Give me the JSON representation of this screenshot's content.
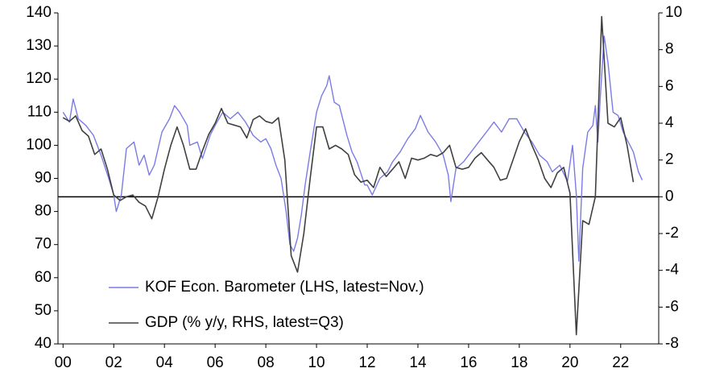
{
  "chart_data": {
    "type": "line",
    "xlim": [
      1999.8,
      2023.5
    ],
    "xticks": [
      {
        "value": 2000,
        "label": "00"
      },
      {
        "value": 2002,
        "label": "02"
      },
      {
        "value": 2004,
        "label": "04"
      },
      {
        "value": 2006,
        "label": "06"
      },
      {
        "value": 2008,
        "label": "08"
      },
      {
        "value": 2010,
        "label": "10"
      },
      {
        "value": 2012,
        "label": "12"
      },
      {
        "value": 2014,
        "label": "14"
      },
      {
        "value": 2016,
        "label": "16"
      },
      {
        "value": 2018,
        "label": "18"
      },
      {
        "value": 2020,
        "label": "20"
      },
      {
        "value": 2022,
        "label": "22"
      }
    ],
    "ylim": [
      40,
      140
    ],
    "yticks": [
      40,
      50,
      60,
      70,
      80,
      90,
      100,
      110,
      120,
      130,
      140
    ],
    "y2lim": [
      -8,
      10
    ],
    "y2ticks": [
      -8,
      -6,
      -4,
      -2,
      0,
      2,
      4,
      6,
      8,
      10
    ],
    "legend": "lower left",
    "series": [
      {
        "name": "KOF Econ. Barometer (LHS, latest=Nov.)",
        "color": "#7b7be8",
        "axis": "y",
        "x": [
          2000.0,
          2000.25,
          2000.4,
          2000.6,
          2000.9,
          2001.2,
          2001.5,
          2001.8,
          2002.0,
          2002.1,
          2002.3,
          2002.5,
          2002.8,
          2003.0,
          2003.2,
          2003.4,
          2003.6,
          2003.9,
          2004.2,
          2004.4,
          2004.6,
          2004.9,
          2005.0,
          2005.3,
          2005.5,
          2005.8,
          2006.0,
          2006.3,
          2006.6,
          2006.9,
          2007.2,
          2007.5,
          2007.8,
          2008.0,
          2008.2,
          2008.4,
          2008.6,
          2008.8,
          2008.95,
          2009.1,
          2009.25,
          2009.4,
          2009.55,
          2009.75,
          2010.0,
          2010.2,
          2010.4,
          2010.5,
          2010.7,
          2010.9,
          2011.2,
          2011.4,
          2011.6,
          2011.9,
          2012.0,
          2012.2,
          2012.5,
          2012.8,
          2013.0,
          2013.3,
          2013.6,
          2013.9,
          2014.1,
          2014.4,
          2014.7,
          2015.0,
          2015.2,
          2015.3,
          2015.5,
          2015.8,
          2016.1,
          2016.4,
          2016.7,
          2017.0,
          2017.3,
          2017.6,
          2017.9,
          2018.2,
          2018.5,
          2018.8,
          2019.1,
          2019.3,
          2019.6,
          2019.9,
          2020.1,
          2020.25,
          2020.35,
          2020.5,
          2020.7,
          2020.9,
          2021.0,
          2021.1,
          2021.2,
          2021.35,
          2021.5,
          2021.7,
          2021.9,
          2022.1,
          2022.3,
          2022.5,
          2022.7,
          2022.85
        ],
        "values": [
          110,
          107,
          114,
          108,
          106,
          103,
          97,
          90,
          85,
          80,
          85,
          99,
          101,
          94,
          97,
          91,
          94,
          104,
          108,
          112,
          110,
          106,
          100,
          101,
          96,
          103,
          106,
          110,
          108,
          110,
          107,
          103,
          101,
          102,
          99,
          94,
          90,
          80,
          70,
          68,
          72,
          79,
          88,
          98,
          110,
          115,
          118,
          121,
          113,
          112,
          103,
          98,
          95,
          88,
          88,
          85,
          90,
          92,
          95,
          98,
          102,
          105,
          109,
          104,
          101,
          97,
          91,
          83,
          93,
          95,
          98,
          101,
          104,
          107,
          104,
          108,
          108,
          104,
          101,
          97,
          95,
          92,
          94,
          89,
          100,
          85,
          65,
          93,
          104,
          106,
          112,
          101,
          115,
          133,
          125,
          110,
          109,
          104,
          101,
          98,
          92,
          89.5
        ]
      },
      {
        "name": "GDP (% y/y, RHS, latest=Q3)",
        "color": "#404040",
        "axis": "y2",
        "x": [
          2000.0,
          2000.25,
          2000.5,
          2000.75,
          2001.0,
          2001.25,
          2001.5,
          2001.75,
          2002.0,
          2002.25,
          2002.5,
          2002.75,
          2003.0,
          2003.25,
          2003.5,
          2003.75,
          2004.0,
          2004.25,
          2004.5,
          2004.75,
          2005.0,
          2005.25,
          2005.5,
          2005.75,
          2006.0,
          2006.25,
          2006.5,
          2006.75,
          2007.0,
          2007.25,
          2007.5,
          2007.75,
          2008.0,
          2008.25,
          2008.5,
          2008.75,
          2009.0,
          2009.25,
          2009.5,
          2009.75,
          2010.0,
          2010.25,
          2010.5,
          2010.75,
          2011.0,
          2011.25,
          2011.5,
          2011.75,
          2012.0,
          2012.25,
          2012.5,
          2012.75,
          2013.0,
          2013.25,
          2013.5,
          2013.75,
          2014.0,
          2014.25,
          2014.5,
          2014.75,
          2015.0,
          2015.25,
          2015.5,
          2015.75,
          2016.0,
          2016.25,
          2016.5,
          2016.75,
          2017.0,
          2017.25,
          2017.5,
          2017.75,
          2018.0,
          2018.25,
          2018.5,
          2018.75,
          2019.0,
          2019.25,
          2019.5,
          2019.75,
          2020.0,
          2020.25,
          2020.5,
          2020.75,
          2021.0,
          2021.25,
          2021.5,
          2021.75,
          2022.0,
          2022.25,
          2022.5
        ],
        "values": [
          4.3,
          4.1,
          4.4,
          3.6,
          3.3,
          2.3,
          2.6,
          1.5,
          0.1,
          -0.2,
          0.0,
          0.1,
          -0.3,
          -0.5,
          -1.2,
          0.0,
          1.5,
          2.8,
          3.8,
          2.8,
          1.5,
          1.5,
          2.5,
          3.4,
          4.0,
          4.8,
          4.0,
          3.9,
          3.8,
          3.2,
          4.2,
          4.4,
          4.1,
          4.0,
          4.3,
          2.0,
          -3.2,
          -4.1,
          -2.0,
          1.0,
          3.8,
          3.8,
          2.6,
          2.8,
          2.6,
          2.3,
          1.2,
          0.8,
          0.9,
          0.5,
          1.6,
          1.1,
          1.5,
          1.9,
          1.0,
          2.1,
          2.0,
          2.1,
          2.3,
          2.2,
          2.4,
          2.8,
          1.6,
          1.5,
          1.6,
          2.1,
          2.4,
          2.0,
          1.6,
          0.9,
          1.0,
          2.0,
          3.0,
          3.7,
          2.8,
          2.0,
          1.0,
          0.5,
          1.3,
          1.6,
          0.2,
          -7.5,
          -1.3,
          -1.5,
          0.0,
          9.8,
          4.0,
          3.8,
          4.3,
          2.8,
          0.8
        ]
      }
    ]
  }
}
